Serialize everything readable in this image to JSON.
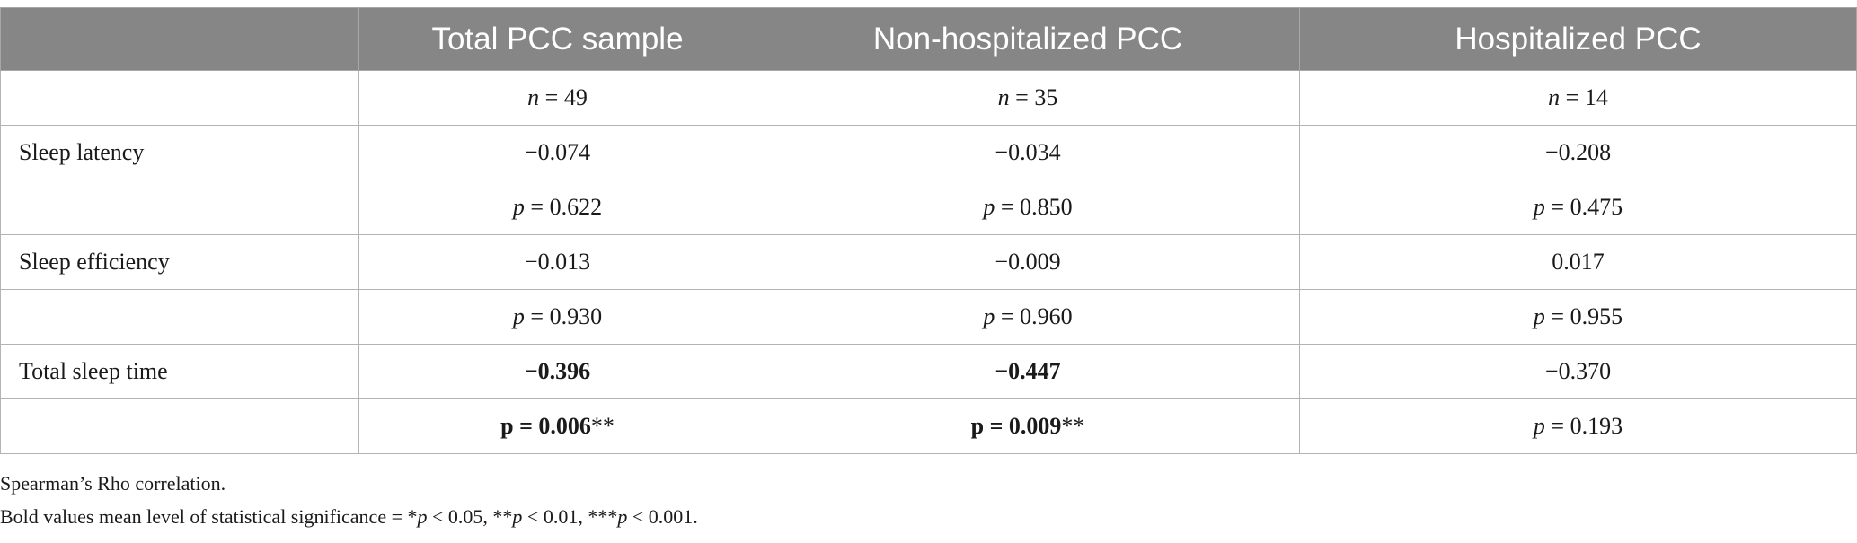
{
  "header": [
    "",
    "Total PCC sample",
    "Non-hospitalized PCC",
    "Hospitalized PCC"
  ],
  "n_row": [
    {
      "prefix": "n",
      "value": " = 49"
    },
    {
      "prefix": "n",
      "value": " = 35"
    },
    {
      "prefix": "n",
      "value": " = 14"
    }
  ],
  "rows": [
    {
      "label": "Sleep latency",
      "rho": [
        "−0.074",
        "−0.034",
        "−0.208"
      ],
      "p": [
        "p = 0.622",
        "p = 0.850",
        "p = 0.475"
      ],
      "sig_stars": [
        "",
        "",
        ""
      ]
    },
    {
      "label": "Sleep efficiency",
      "rho": [
        "−0.013",
        "−0.009",
        "0.017"
      ],
      "p": [
        "p = 0.930",
        "p = 0.960",
        "p = 0.955"
      ],
      "sig_stars": [
        "",
        "",
        ""
      ]
    },
    {
      "label": "Total sleep time",
      "rho": [
        "−0.396",
        "−0.447",
        "−0.370"
      ],
      "p": [
        "p = 0.006",
        "p = 0.009",
        "p = 0.193"
      ],
      "sig_stars": [
        "**",
        "**",
        ""
      ],
      "bold": [
        true,
        true,
        false
      ]
    }
  ],
  "footnotes": {
    "line1": "Spearman’s Rho correlation.",
    "line2": "Bold values mean level of statistical significance = *p < 0.05, **p < 0.01, ***p < 0.001."
  }
}
